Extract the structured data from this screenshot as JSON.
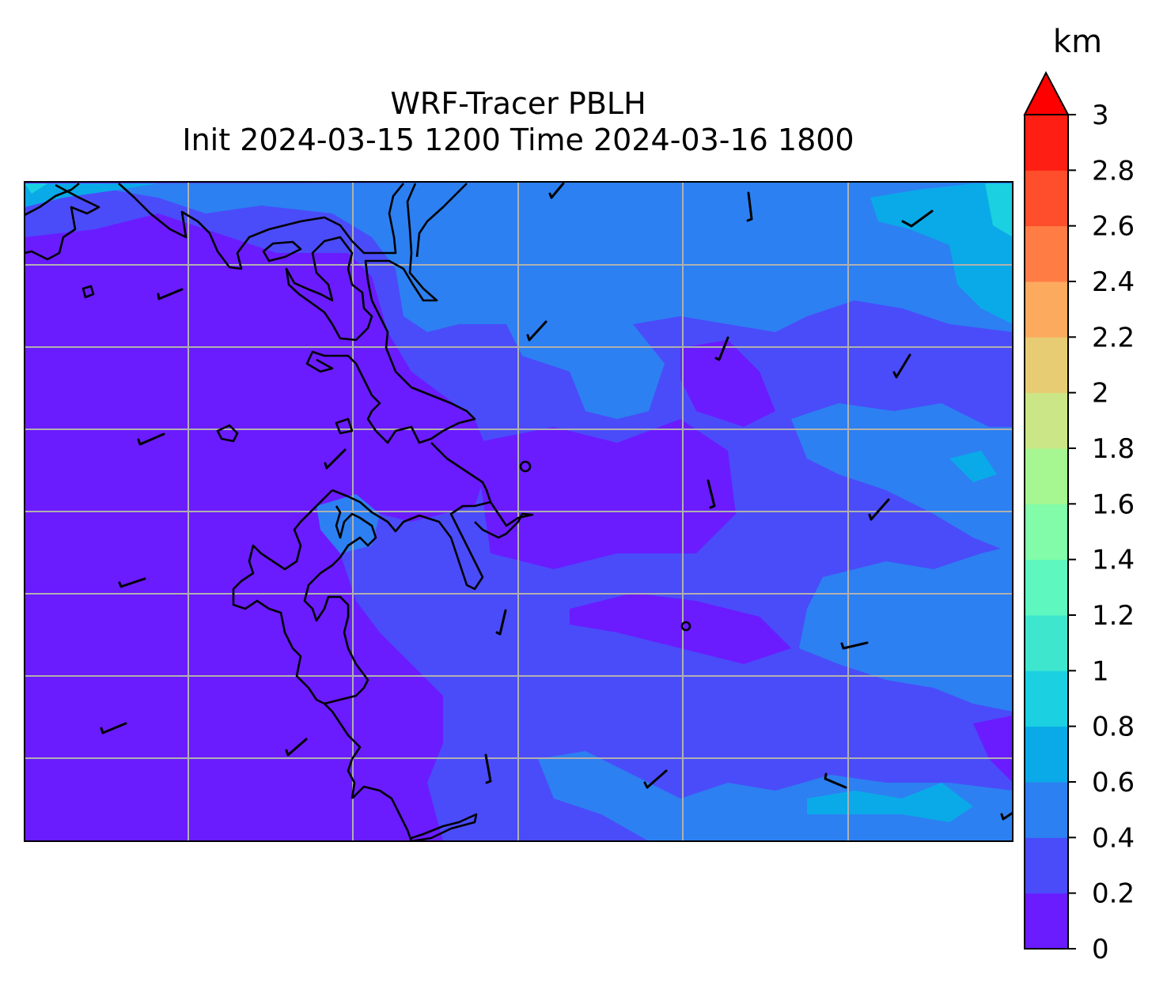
{
  "title_line1": "WRF-Tracer PBLH",
  "title_line2": "Init 2024-03-15 1200 Time 2024-03-16 1800",
  "colorbar": {
    "unit": "km",
    "min": 0,
    "max": 3,
    "levels": [
      0,
      0.2,
      0.4,
      0.6,
      0.8,
      1.0,
      1.2,
      1.4,
      1.6,
      1.8,
      2.0,
      2.2,
      2.4,
      2.6,
      2.8,
      3.0
    ],
    "tick_labels": [
      "0",
      "0.2",
      "0.4",
      "0.6",
      "0.8",
      "1",
      "1.2",
      "1.4",
      "1.6",
      "1.8",
      "2",
      "2.2",
      "2.4",
      "2.6",
      "2.8",
      "3"
    ],
    "colors": [
      "#6a1cff",
      "#4a4cf9",
      "#2c80f2",
      "#0aaae8",
      "#1ad0e1",
      "#3de6cd",
      "#5ff7c0",
      "#82fca8",
      "#a6f792",
      "#cbe686",
      "#e8cc74",
      "#fcaa5e",
      "#ff7d45",
      "#ff4e2c",
      "#ff1e13"
    ],
    "extend_color": "#ff0000"
  },
  "colors": {
    "pblh_0_0.2": "#6a1cff",
    "pblh_0.2_0.4": "#4a4cf9",
    "pblh_0.4_0.6": "#2c80f2",
    "pblh_0.6_0.8": "#0aaae8",
    "pblh_0.8_1.0": "#1ad0e1",
    "coastline": "#000000",
    "gridline": "#b0b0b0"
  }
}
